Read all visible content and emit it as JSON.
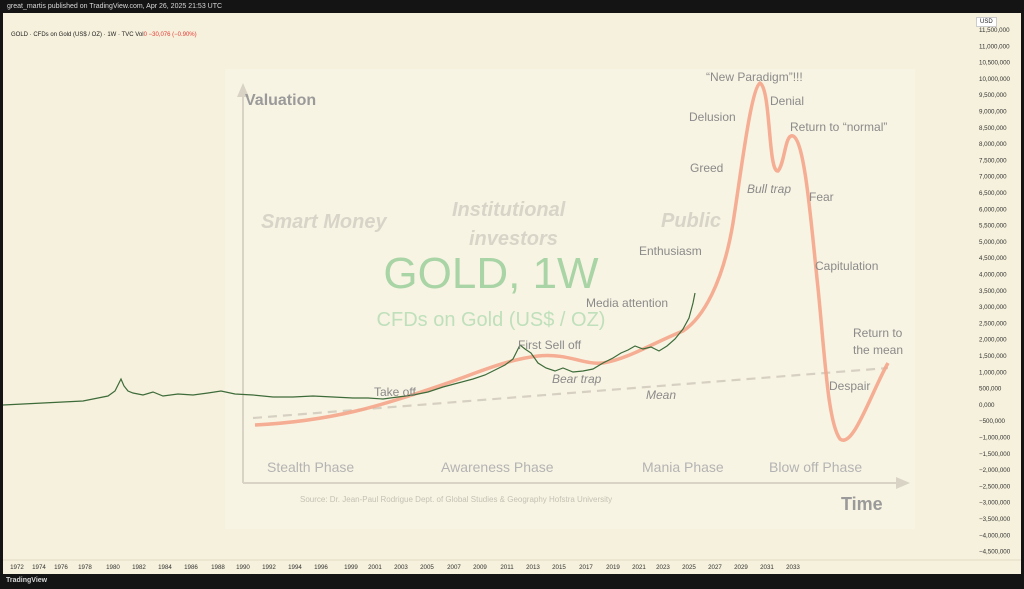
{
  "header": {
    "publisher_line": "great_martis published on TradingView.com, Apr 26, 2025 21:53 UTC"
  },
  "legend": {
    "symbol_line": "GOLD · CFDs on Gold (US$ / OZ) · 1W · TVC  Vol",
    "change": "0  −30,076 (−0.90%)"
  },
  "watermark": {
    "title": "GOLD, 1W",
    "subtitle": "CFDs on Gold (US$ / OZ)"
  },
  "axis": {
    "currency": "USD",
    "y_ticks": [
      "11,500,000",
      "11,000,000",
      "10,500,000",
      "10,000,000",
      "9,500,000",
      "9,000,000",
      "8,500,000",
      "8,000,000",
      "7,500,000",
      "7,000,000",
      "6,500,000",
      "6,000,000",
      "5,500,000",
      "5,000,000",
      "4,500,000",
      "4,000,000",
      "3,500,000",
      "3,000,000",
      "2,500,000",
      "2,000,000",
      "1,500,000",
      "1,000,000",
      "500,000",
      "0,000",
      "−500,000",
      "−1,000,000",
      "−1,500,000",
      "−2,000,000",
      "−2,500,000",
      "−3,000,000",
      "−3,500,000",
      "−4,000,000",
      "−4,500,000"
    ],
    "x_ticks": [
      "1972",
      "1974",
      "1976",
      "1978",
      "1980",
      "1982",
      "1984",
      "1986",
      "1988",
      "1990",
      "1992",
      "1994",
      "1996",
      "1999",
      "2001",
      "2003",
      "2005",
      "2007",
      "2009",
      "2011",
      "2013",
      "2015",
      "2017",
      "2019",
      "2021",
      "2023",
      "2025",
      "2027",
      "2029",
      "2031",
      "2033"
    ]
  },
  "overlay": {
    "valuation": "Valuation",
    "time": "Time",
    "smart_money": "Smart Money",
    "institutional": [
      "Institutional",
      "investors"
    ],
    "public": "Public",
    "labels": {
      "take_off": "Take off",
      "first_sell_off": "First Sell off",
      "bear_trap": "Bear trap",
      "media_attention": "Media attention",
      "enthusiasm": "Enthusiasm",
      "greed": "Greed",
      "delusion": "Delusion",
      "new_paradigm": "“New Paradigm”!!!",
      "denial": "Denial",
      "return_normal": "Return to “normal”",
      "bull_trap": "Bull trap",
      "fear": "Fear",
      "capitulation": "Capitulation",
      "return_mean": [
        "Return to",
        "the mean"
      ],
      "despair": "Despair",
      "mean": "Mean"
    },
    "phases": [
      "Stealth Phase",
      "Awareness Phase",
      "Mania Phase",
      "Blow off  Phase"
    ],
    "source": "Source: Dr. Jean-Paul Rodrigue Dept. of Global Studies & Geography Hofstra University"
  },
  "footer": {
    "logo": "TradingView"
  },
  "colors": {
    "bg": "#f6f1dc",
    "cycle_curve": "#f4a58a",
    "price": "#3d6b3a",
    "overlay_text": "#8a8a8a",
    "watermark": "#a9d4a5"
  }
}
